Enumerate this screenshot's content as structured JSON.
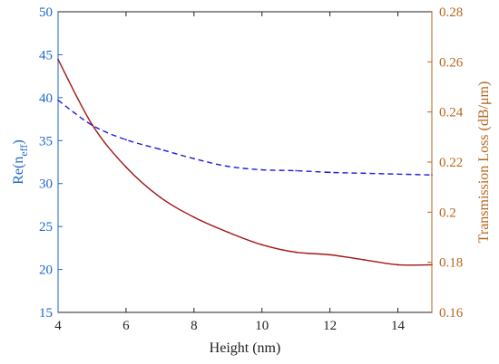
{
  "chart_data": {
    "type": "line",
    "title": "",
    "xlabel": "Height (nm)",
    "ylabel_left": "Re(n",
    "ylabel_left_sub": "eff",
    "ylabel_left_close": ")",
    "ylabel_right": "Transmission Loss (dB/μm)",
    "xlim": [
      4,
      15
    ],
    "ylim_left": [
      15,
      50
    ],
    "ylim_right": [
      0.16,
      0.28
    ],
    "xticks": [
      4,
      6,
      8,
      10,
      12,
      14
    ],
    "xtick_labels": [
      "4",
      "6",
      "8",
      "10",
      "12",
      "14"
    ],
    "yticks_left": [
      15,
      20,
      25,
      30,
      35,
      40,
      45,
      50
    ],
    "ytick_labels_left": [
      "15",
      "20",
      "25",
      "30",
      "35",
      "40",
      "45",
      "50"
    ],
    "yticks_right": [
      0.16,
      0.18,
      0.2,
      0.22,
      0.24,
      0.26,
      0.28
    ],
    "ytick_labels_right": [
      "0.16",
      "0.18",
      "0.2",
      "0.22",
      "0.24",
      "0.26",
      "0.28"
    ],
    "grid": false,
    "legend": "none",
    "colors": {
      "left": "#1f66c9",
      "right": "#b5651d",
      "left_line": "#1a1adf",
      "right_line": "#a31515",
      "axes": "#222222"
    },
    "series": [
      {
        "axis": "left",
        "style": "dashed",
        "x": [
          4,
          5,
          6,
          7,
          8,
          9,
          10,
          11,
          12,
          13,
          14,
          15
        ],
        "values": [
          39.7,
          36.8,
          35.1,
          34.0,
          32.9,
          32.0,
          31.6,
          31.5,
          31.3,
          31.2,
          31.1,
          31.0
        ]
      },
      {
        "axis": "right",
        "style": "solid",
        "x": [
          4,
          5,
          6,
          7,
          8,
          9,
          10,
          11,
          12,
          13,
          14,
          15
        ],
        "values": [
          0.261,
          0.235,
          0.218,
          0.206,
          0.198,
          0.192,
          0.187,
          0.184,
          0.183,
          0.181,
          0.179,
          0.179
        ]
      }
    ]
  }
}
